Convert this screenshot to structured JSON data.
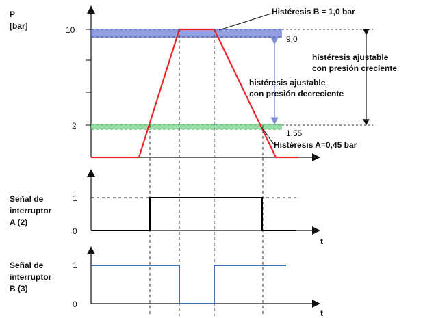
{
  "top_plot": {
    "y_axis_label_line1": "P",
    "y_axis_label_line2": "[bar]",
    "tick_10": "10",
    "tick_2": "2",
    "value_upper_reset": "9,0",
    "value_lower_reset": "1,55",
    "hysteresis_b": "Histéresis B = 1,0 bar",
    "hysteresis_a": "Histéresis A=0,45 bar",
    "adjustable_rising_line1": "histéresis ajustable",
    "adjustable_rising_line2": "con presión creciente",
    "adjustable_falling_line1": "histéresis ajustable",
    "adjustable_falling_line2": "con presión decreciente",
    "colors": {
      "pressure_curve": "#e8262a",
      "band_b": "#6f7fd6",
      "band_a": "#7ccf8e",
      "arrow": "#7f8fd0"
    }
  },
  "signal_a": {
    "label_line1": "Señal de",
    "label_line2": "interruptor",
    "label_line3": "A (2)",
    "tick_1": "1",
    "tick_0": "0",
    "t_label": "t",
    "color": "#000000"
  },
  "signal_b": {
    "label_line1": "Señal de",
    "label_line2": "interruptor",
    "label_line3": "B (3)",
    "tick_1": "1",
    "tick_0": "0",
    "t_label": "t",
    "color": "#2b5fa8"
  }
}
